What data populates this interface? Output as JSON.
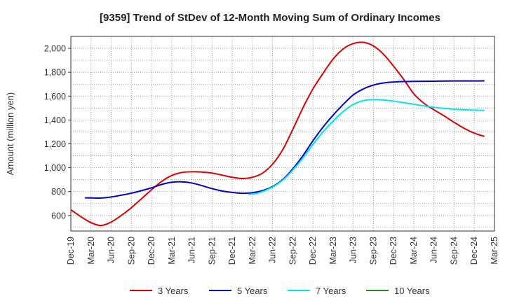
{
  "chart_data": {
    "type": "line",
    "title": "[9359]  Trend of StDev of 12-Month Moving Sum of Ordinary Incomes",
    "xlabel": "",
    "ylabel": "Amount (million yen)",
    "ylim": [
      470,
      2100
    ],
    "y_ticks": [
      600,
      800,
      1000,
      1200,
      1400,
      1600,
      1800,
      2000
    ],
    "y_tick_labels": [
      "600",
      "800",
      "1,000",
      "1,200",
      "1,400",
      "1,600",
      "1,800",
      "2,000"
    ],
    "x_tick_labels": [
      "Dec-19",
      "Mar-20",
      "Jun-20",
      "Sep-20",
      "Dec-20",
      "Mar-21",
      "Jun-21",
      "Sep-21",
      "Dec-21",
      "Mar-22",
      "Jun-22",
      "Sep-22",
      "Dec-22",
      "Mar-23",
      "Jun-23",
      "Sep-23",
      "Dec-23",
      "Mar-24",
      "Jun-24",
      "Sep-24",
      "Dec-24",
      "Mar-25"
    ],
    "grid": true,
    "legend_position": "bottom",
    "series": [
      {
        "name": "3 Years",
        "color": "#dd0000",
        "points": [
          [
            0,
            648
          ],
          [
            0.5,
            590
          ],
          [
            1,
            540
          ],
          [
            1.5,
            516
          ],
          [
            2,
            545
          ],
          [
            2.5,
            600
          ],
          [
            3,
            665
          ],
          [
            3.5,
            740
          ],
          [
            4,
            815
          ],
          [
            4.5,
            885
          ],
          [
            5,
            935
          ],
          [
            5.5,
            960
          ],
          [
            6,
            966
          ],
          [
            6.5,
            964
          ],
          [
            7,
            955
          ],
          [
            7.5,
            938
          ],
          [
            8,
            920
          ],
          [
            8.5,
            910
          ],
          [
            9,
            920
          ],
          [
            9.5,
            955
          ],
          [
            10,
            1030
          ],
          [
            10.5,
            1150
          ],
          [
            11,
            1320
          ],
          [
            11.5,
            1500
          ],
          [
            12,
            1660
          ],
          [
            12.5,
            1790
          ],
          [
            13,
            1910
          ],
          [
            13.5,
            1995
          ],
          [
            14,
            2040
          ],
          [
            14.5,
            2050
          ],
          [
            15,
            2020
          ],
          [
            15.5,
            1950
          ],
          [
            16,
            1850
          ],
          [
            16.5,
            1740
          ],
          [
            17,
            1620
          ],
          [
            17.5,
            1540
          ],
          [
            18,
            1485
          ],
          [
            18.5,
            1435
          ],
          [
            19,
            1380
          ],
          [
            19.5,
            1330
          ],
          [
            20,
            1290
          ],
          [
            20.5,
            1262
          ]
        ]
      },
      {
        "name": "5 Years",
        "color": "#0000cc",
        "points": [
          [
            0.7,
            748
          ],
          [
            1,
            747
          ],
          [
            1.5,
            746
          ],
          [
            2,
            755
          ],
          [
            2.5,
            770
          ],
          [
            3,
            787
          ],
          [
            3.5,
            808
          ],
          [
            4,
            832
          ],
          [
            4.5,
            860
          ],
          [
            5,
            878
          ],
          [
            5.5,
            882
          ],
          [
            6,
            872
          ],
          [
            6.5,
            850
          ],
          [
            7,
            825
          ],
          [
            7.5,
            805
          ],
          [
            8,
            793
          ],
          [
            8.5,
            786
          ],
          [
            9,
            790
          ],
          [
            9.5,
            808
          ],
          [
            10,
            842
          ],
          [
            10.5,
            900
          ],
          [
            11,
            990
          ],
          [
            11.5,
            1100
          ],
          [
            12,
            1225
          ],
          [
            12.5,
            1340
          ],
          [
            13,
            1440
          ],
          [
            13.5,
            1530
          ],
          [
            14,
            1610
          ],
          [
            14.5,
            1660
          ],
          [
            15,
            1692
          ],
          [
            15.5,
            1710
          ],
          [
            16,
            1718
          ],
          [
            16.5,
            1722
          ],
          [
            17,
            1723
          ],
          [
            17.5,
            1724
          ],
          [
            18,
            1725
          ],
          [
            18.5,
            1726
          ],
          [
            19,
            1727
          ],
          [
            19.5,
            1727
          ],
          [
            20,
            1727
          ],
          [
            20.5,
            1728
          ]
        ]
      },
      {
        "name": "7 Years",
        "color": "#00e5ee",
        "points": [
          [
            8.8,
            776
          ],
          [
            9.2,
            785
          ],
          [
            9.5,
            800
          ],
          [
            10,
            838
          ],
          [
            10.5,
            895
          ],
          [
            11,
            980
          ],
          [
            11.5,
            1080
          ],
          [
            12,
            1195
          ],
          [
            12.5,
            1300
          ],
          [
            13,
            1390
          ],
          [
            13.5,
            1470
          ],
          [
            14,
            1530
          ],
          [
            14.5,
            1562
          ],
          [
            15,
            1570
          ],
          [
            15.5,
            1567
          ],
          [
            16,
            1558
          ],
          [
            16.5,
            1545
          ],
          [
            17,
            1532
          ],
          [
            17.5,
            1518
          ],
          [
            18,
            1506
          ],
          [
            18.5,
            1497
          ],
          [
            19,
            1490
          ],
          [
            19.5,
            1485
          ],
          [
            20,
            1482
          ],
          [
            20.5,
            1480
          ]
        ]
      },
      {
        "name": "10 Years",
        "color": "#228b22",
        "points": []
      }
    ]
  }
}
